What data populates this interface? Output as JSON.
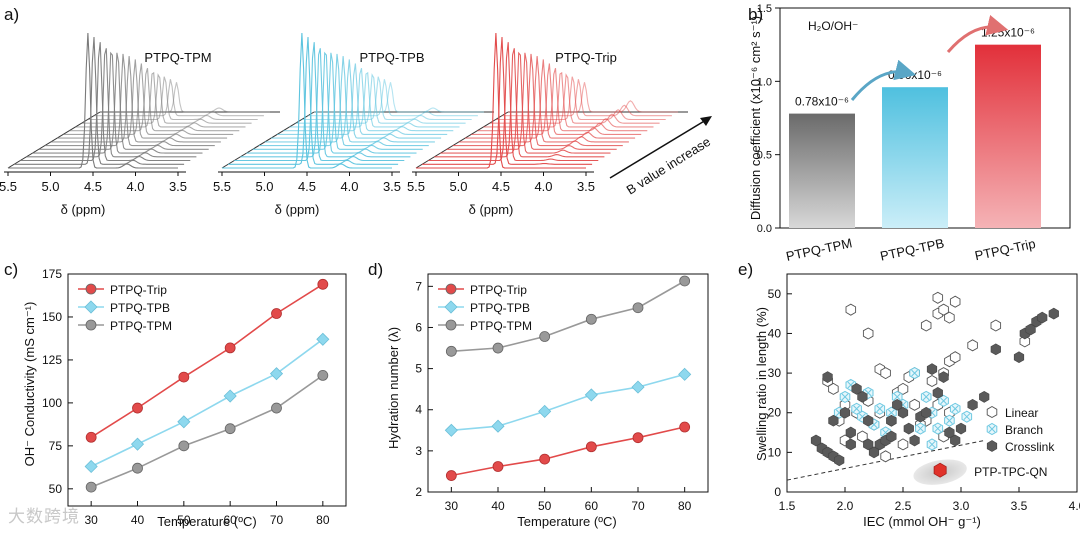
{
  "watermark": "大数跨境",
  "panel_letters": {
    "a": "a)",
    "b": "b)",
    "c": "c)",
    "d": "d)",
    "e": "e)"
  },
  "nmr": {
    "samples": [
      "PTPQ-TPM",
      "PTPQ-TPB",
      "PTPQ-Trip"
    ],
    "colors": [
      "#7a7a7a",
      "#5cc4df",
      "#e24a4a"
    ],
    "xticks": [
      "5.5",
      "5.0",
      "4.5",
      "4.0",
      "3.5"
    ],
    "xlabel": "δ (ppm)",
    "depth_label": "B value increase",
    "n_traces": 16
  },
  "chart_data": [
    {
      "id": "b",
      "type": "bar",
      "annotation": "H₂O/OH⁻",
      "categories": [
        "PTPQ-TPM",
        "PTPQ-TPB",
        "PTPQ-Trip"
      ],
      "values": [
        0.78,
        0.96,
        1.25
      ],
      "value_labels": [
        "0.78x10⁻⁶",
        "0.96x10⁻⁶",
        "1.25x10⁻⁶"
      ],
      "colors": [
        "#6d6d6d",
        "#55c3e0",
        "#e23a3a"
      ],
      "ylabel": "Diffusion coefficient (x10⁻⁶ cm² s⁻¹)",
      "ylim": [
        0,
        1.5
      ],
      "yticks": [
        "0.0",
        "0.5",
        "1.0",
        "1.5"
      ]
    },
    {
      "id": "c",
      "type": "line",
      "x": [
        30,
        40,
        50,
        60,
        70,
        80
      ],
      "xlim": [
        25,
        85
      ],
      "ylim": [
        40,
        175
      ],
      "xticks": [
        "30",
        "40",
        "50",
        "60",
        "70",
        "80"
      ],
      "yticks": [
        "50",
        "75",
        "100",
        "125",
        "150",
        "175"
      ],
      "xlabel": "Temperature (ºC)",
      "ylabel": "OH⁻ Conductivity (mS cm⁻¹)",
      "series": [
        {
          "name": "PTPQ-Trip",
          "values": [
            80,
            97,
            115,
            132,
            152,
            169
          ],
          "color": "#e24a4a",
          "marker": "circle"
        },
        {
          "name": "PTPQ-TPB",
          "values": [
            63,
            76,
            89,
            104,
            117,
            137
          ],
          "color": "#8ed8ee",
          "marker": "diamond"
        },
        {
          "name": "PTPQ-TPM",
          "values": [
            51,
            62,
            75,
            85,
            97,
            116
          ],
          "color": "#999999",
          "marker": "circle"
        }
      ]
    },
    {
      "id": "d",
      "type": "line",
      "x": [
        30,
        40,
        50,
        60,
        70,
        80
      ],
      "xlim": [
        25,
        85
      ],
      "ylim": [
        2,
        7.3
      ],
      "xticks": [
        "30",
        "40",
        "50",
        "60",
        "70",
        "80"
      ],
      "yticks": [
        "2",
        "3",
        "4",
        "5",
        "6",
        "7"
      ],
      "xlabel": "Temperature (ºC)",
      "ylabel": "Hydration number (λ)",
      "series": [
        {
          "name": "PTPQ-Trip",
          "values": [
            2.4,
            2.62,
            2.8,
            3.1,
            3.32,
            3.58
          ],
          "color": "#e24a4a",
          "marker": "circle"
        },
        {
          "name": "PTPQ-TPB",
          "values": [
            3.5,
            3.6,
            3.96,
            4.36,
            4.55,
            4.86
          ],
          "color": "#8ed8ee",
          "marker": "diamond"
        },
        {
          "name": "PTPQ-TPM",
          "values": [
            5.42,
            5.5,
            5.78,
            6.2,
            6.48,
            7.13
          ],
          "color": "#999999",
          "marker": "circle"
        }
      ]
    },
    {
      "id": "e",
      "type": "scatter",
      "xlim": [
        1.5,
        4.0
      ],
      "ylim": [
        0,
        55
      ],
      "xticks": [
        "1.5",
        "2.0",
        "2.5",
        "3.0",
        "3.5",
        "4.0"
      ],
      "yticks": [
        "0",
        "10",
        "20",
        "30",
        "40",
        "50"
      ],
      "xlabel": "IEC (mmol OH⁻ g⁻¹)",
      "ylabel": "Swelling ratio in length (%)",
      "legend": [
        "Linear",
        "Branch",
        "Crosslink"
      ],
      "highlight": {
        "name": "PTP-TPC-QN",
        "x": 2.82,
        "y": 5.5,
        "color": "#e0322a"
      },
      "trend": [
        [
          1.5,
          3
        ],
        [
          3.2,
          13
        ]
      ],
      "series": [
        {
          "name": "Linear",
          "style": "open-hexagon",
          "points": [
            [
              2.05,
              46
            ],
            [
              2.2,
              40
            ],
            [
              2.3,
              31
            ],
            [
              2.35,
              30
            ],
            [
              2.45,
              25
            ],
            [
              2.5,
              26
            ],
            [
              1.85,
              28
            ],
            [
              1.9,
              26
            ],
            [
              2.0,
              22
            ],
            [
              2.1,
              20
            ],
            [
              2.15,
              14
            ],
            [
              2.25,
              17
            ],
            [
              2.3,
              20
            ],
            [
              2.4,
              18
            ],
            [
              2.35,
              9
            ],
            [
              2.55,
              29
            ],
            [
              2.7,
              42
            ],
            [
              2.8,
              45
            ],
            [
              2.85,
              46
            ],
            [
              2.9,
              44
            ],
            [
              2.95,
              48
            ],
            [
              2.8,
              49
            ],
            [
              2.9,
              33
            ],
            [
              2.95,
              34
            ],
            [
              2.85,
              30
            ],
            [
              2.75,
              28
            ],
            [
              2.8,
              22
            ],
            [
              2.7,
              18
            ],
            [
              2.65,
              17
            ],
            [
              2.85,
              14
            ],
            [
              3.1,
              37
            ],
            [
              3.3,
              42
            ],
            [
              3.55,
              38
            ],
            [
              2.6,
              22
            ],
            [
              2.0,
              13
            ],
            [
              2.5,
              12
            ],
            [
              2.2,
              23
            ],
            [
              1.95,
              18
            ],
            [
              2.6,
              30
            ],
            [
              2.9,
              20
            ]
          ]
        },
        {
          "name": "Branch",
          "style": "crossed-hexagon",
          "points": [
            [
              1.95,
              20
            ],
            [
              2.0,
              24
            ],
            [
              2.05,
              27
            ],
            [
              2.1,
              21
            ],
            [
              2.15,
              19
            ],
            [
              2.2,
              25
            ],
            [
              2.25,
              17
            ],
            [
              2.3,
              21
            ],
            [
              2.35,
              15
            ],
            [
              2.4,
              20
            ],
            [
              2.45,
              24
            ],
            [
              2.5,
              22
            ],
            [
              2.6,
              30
            ],
            [
              2.7,
              24
            ],
            [
              2.75,
              20
            ],
            [
              2.8,
              16
            ],
            [
              2.85,
              23
            ],
            [
              2.9,
              18
            ],
            [
              2.95,
              21
            ],
            [
              3.05,
              19
            ],
            [
              2.75,
              12
            ],
            [
              2.65,
              16
            ]
          ]
        },
        {
          "name": "Crosslink",
          "style": "filled-hexagon",
          "points": [
            [
              1.75,
              13
            ],
            [
              1.8,
              11
            ],
            [
              1.85,
              10
            ],
            [
              1.9,
              9
            ],
            [
              1.95,
              8
            ],
            [
              1.85,
              29
            ],
            [
              1.9,
              18
            ],
            [
              2.0,
              20
            ],
            [
              2.05,
              15
            ],
            [
              2.1,
              26
            ],
            [
              2.15,
              24
            ],
            [
              2.2,
              18
            ],
            [
              2.2,
              12
            ],
            [
              2.25,
              10
            ],
            [
              2.3,
              12
            ],
            [
              2.35,
              13
            ],
            [
              2.4,
              14
            ],
            [
              2.4,
              18
            ],
            [
              2.45,
              22
            ],
            [
              2.5,
              20
            ],
            [
              2.55,
              16
            ],
            [
              2.6,
              13
            ],
            [
              2.65,
              19
            ],
            [
              2.7,
              20
            ],
            [
              2.75,
              31
            ],
            [
              2.8,
              25
            ],
            [
              2.85,
              29
            ],
            [
              2.9,
              15
            ],
            [
              3.0,
              16
            ],
            [
              3.1,
              22
            ],
            [
              3.2,
              24
            ],
            [
              3.3,
              36
            ],
            [
              3.5,
              34
            ],
            [
              3.55,
              40
            ],
            [
              3.6,
              41
            ],
            [
              3.65,
              43
            ],
            [
              3.7,
              44
            ],
            [
              3.8,
              45
            ],
            [
              2.05,
              12
            ],
            [
              2.95,
              13
            ]
          ]
        }
      ]
    }
  ]
}
